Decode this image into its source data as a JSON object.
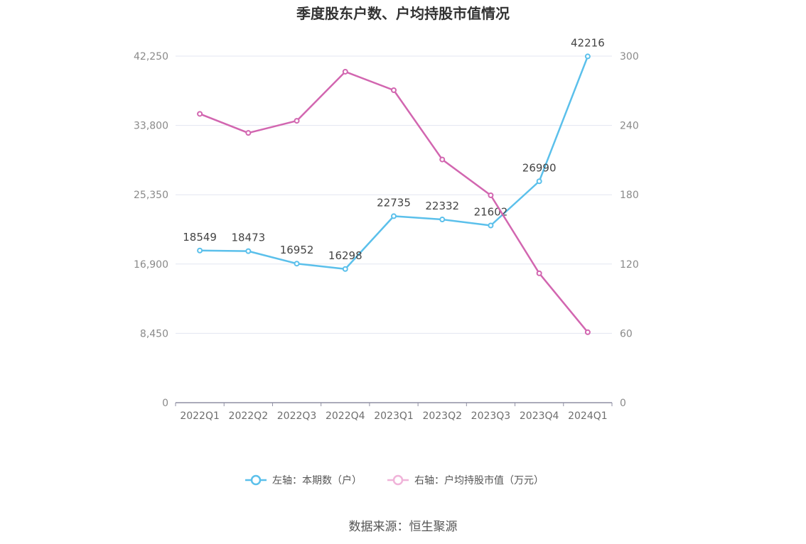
{
  "chart_data": {
    "type": "line",
    "title": "季度股东户数、户均持股市值情况",
    "source": "数据来源：恒生聚源",
    "categories": [
      "2022Q1",
      "2022Q2",
      "2022Q3",
      "2022Q4",
      "2023Q1",
      "2023Q2",
      "2023Q3",
      "2023Q4",
      "2024Q1"
    ],
    "left_axis": {
      "ylim": [
        0,
        42250
      ],
      "ticks": [
        "0",
        "8,450",
        "16,900",
        "25,350",
        "33,800",
        "42,250"
      ],
      "tick_values": [
        0,
        8450,
        16900,
        25350,
        33800,
        42250
      ]
    },
    "right_axis": {
      "ylim": [
        0,
        300
      ],
      "ticks": [
        "0",
        "60",
        "120",
        "180",
        "240",
        "300"
      ],
      "tick_values": [
        0,
        60,
        120,
        180,
        240,
        300
      ]
    },
    "series": [
      {
        "name": "左轴：本期数（户）",
        "axis": "left",
        "color": "#5bc0eb",
        "values": [
          18549,
          18473,
          16952,
          16298,
          22735,
          22332,
          21602,
          26990,
          42216
        ],
        "labels": [
          "18549",
          "18473",
          "16952",
          "16298",
          "22735",
          "22332",
          "21602",
          "26990",
          "42216"
        ]
      },
      {
        "name": "右轴：户均持股市值（万元）",
        "axis": "right",
        "color": "#d266b0",
        "values": [
          250.0,
          233.5,
          244.0,
          286.5,
          270.5,
          210.5,
          179.5,
          112.0,
          61.0
        ]
      }
    ],
    "grid": true,
    "legend_position": "bottom"
  }
}
